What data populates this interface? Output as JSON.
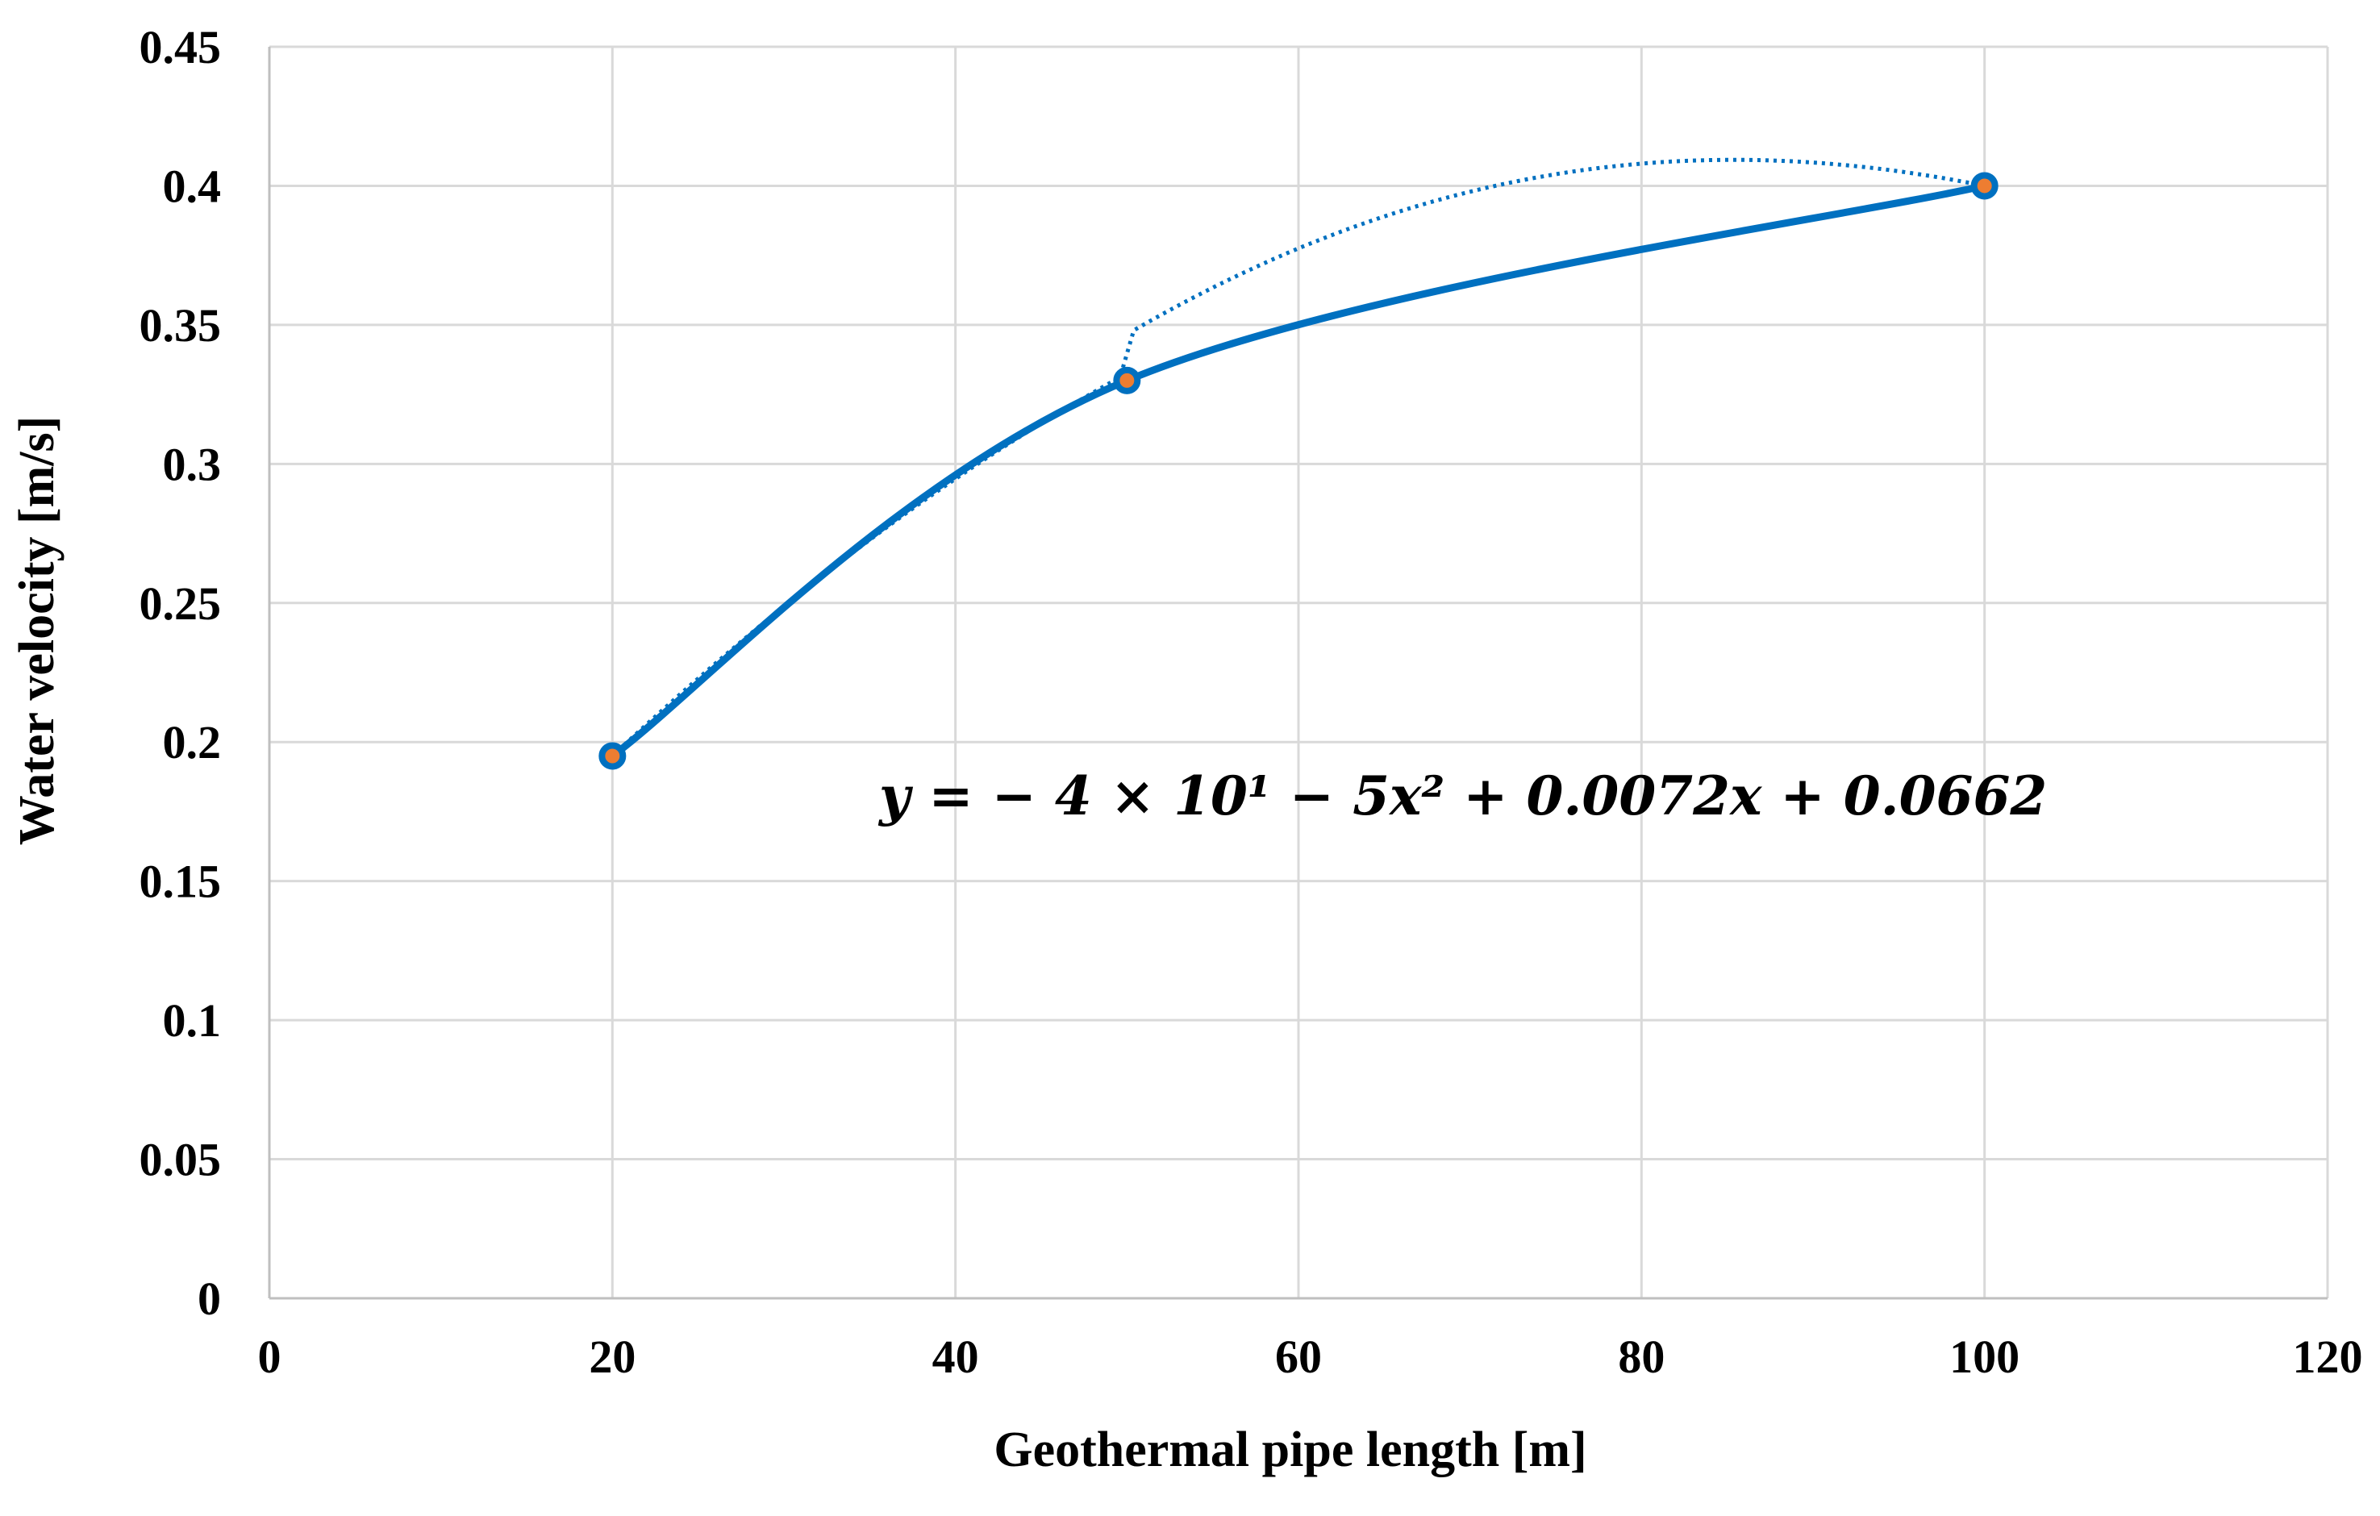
{
  "chart_data": {
    "type": "line",
    "title": "",
    "xlabel": "Geothermal pipe length [m]",
    "ylabel": "Water velocity [m/s]",
    "xlim": [
      0,
      120
    ],
    "ylim": [
      0,
      0.45
    ],
    "x_ticks": [
      "0",
      "20",
      "40",
      "60",
      "80",
      "100",
      "120"
    ],
    "y_ticks": [
      "0",
      "0.05",
      "0.1",
      "0.15",
      "0.2",
      "0.25",
      "0.3",
      "0.35",
      "0.4",
      "0.45"
    ],
    "grid": true,
    "series": [
      {
        "x": [
          20,
          50,
          100
        ],
        "y": [
          0.195,
          0.33,
          0.4
        ],
        "style": "smoothed line with circle markers",
        "color": "#0070C0"
      }
    ],
    "trendline": {
      "type": "polynomial order 2",
      "style": "dotted",
      "color": "#0070C0",
      "coefficients": {
        "a": -4e-05,
        "b": 0.0072,
        "c": 0.0662
      }
    },
    "annotation": {
      "equation": "y = − 4 × 10¹ − 5x² + 0.0072x + 0.0662"
    }
  }
}
